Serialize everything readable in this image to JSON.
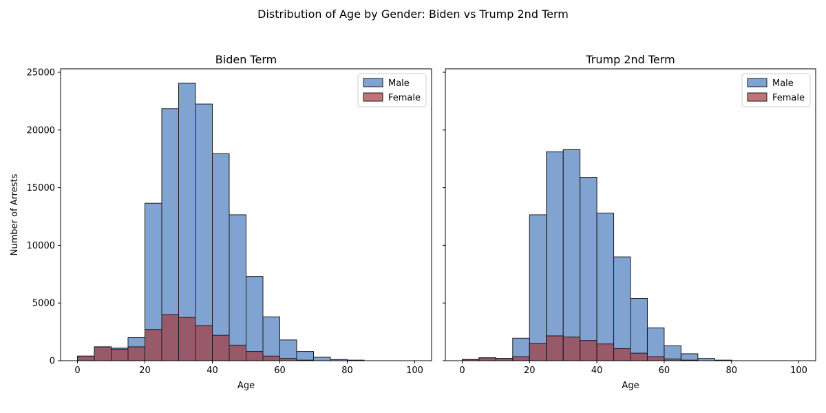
{
  "suptitle": "Distribution of Age by Gender: Biden vs Trump 2nd Term",
  "colors": {
    "male": "#4c7cbf",
    "female": "#a33a3d",
    "edge": "#1a1a1a"
  },
  "chart_data": [
    {
      "type": "bar",
      "title": "Biden Term",
      "xlabel": "Age",
      "ylabel": "Number of Arrests",
      "xlim": [
        -5,
        105
      ],
      "ylim": [
        0,
        25300
      ],
      "xticks": [
        0,
        20,
        40,
        60,
        80,
        100
      ],
      "yticks": [
        0,
        5000,
        10000,
        15000,
        20000,
        25000
      ],
      "bin_edges": [
        0,
        5,
        10,
        15,
        20,
        25,
        30,
        35,
        40,
        45,
        50,
        55,
        60,
        65,
        70,
        75,
        80,
        85,
        90,
        95,
        100
      ],
      "legend_position": "top-right",
      "series": [
        {
          "name": "Male",
          "values": [
            400,
            1200,
            1100,
            2000,
            13650,
            21850,
            24050,
            22250,
            17950,
            12650,
            7300,
            3800,
            1800,
            800,
            300,
            100,
            50,
            0,
            0,
            0
          ]
        },
        {
          "name": "Female",
          "values": [
            400,
            1200,
            1000,
            1200,
            2700,
            4000,
            3750,
            3050,
            2200,
            1350,
            800,
            400,
            200,
            50,
            0,
            0,
            0,
            0,
            0,
            0
          ]
        }
      ]
    },
    {
      "type": "bar",
      "title": "Trump 2nd Term",
      "xlabel": "Age",
      "ylabel": "",
      "xlim": [
        -5,
        105
      ],
      "ylim": [
        0,
        25300
      ],
      "xticks": [
        0,
        20,
        40,
        60,
        80,
        100
      ],
      "yticks": [
        0,
        5000,
        10000,
        15000,
        20000,
        25000
      ],
      "bin_edges": [
        0,
        5,
        10,
        15,
        20,
        25,
        30,
        35,
        40,
        45,
        50,
        55,
        60,
        65,
        70,
        75,
        80,
        85,
        90,
        95,
        100
      ],
      "legend_position": "top-right",
      "series": [
        {
          "name": "Male",
          "values": [
            100,
            250,
            200,
            1950,
            12650,
            18100,
            18300,
            15900,
            12800,
            9000,
            5400,
            2850,
            1300,
            600,
            200,
            50,
            0,
            0,
            0,
            0
          ]
        },
        {
          "name": "Female",
          "values": [
            100,
            250,
            200,
            350,
            1500,
            2150,
            2050,
            1750,
            1450,
            1050,
            650,
            350,
            150,
            50,
            0,
            0,
            0,
            0,
            0,
            0
          ]
        }
      ]
    }
  ]
}
